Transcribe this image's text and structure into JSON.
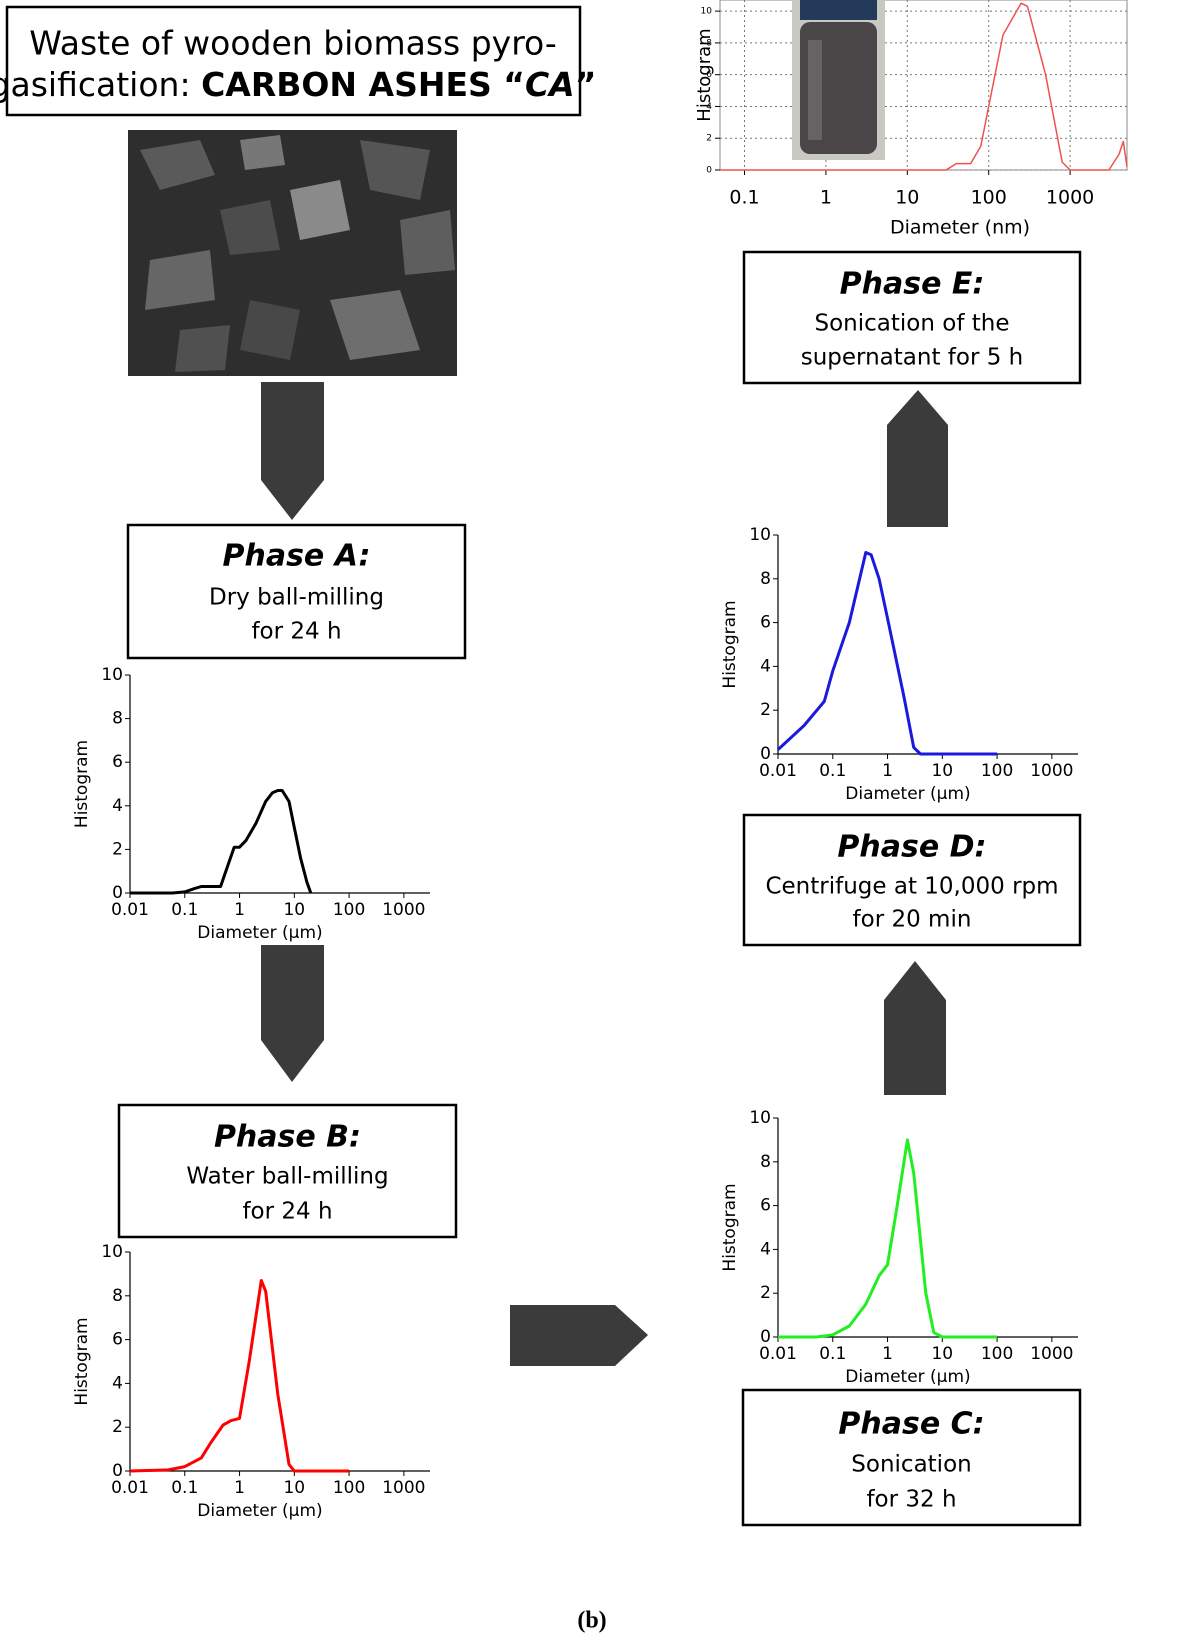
{
  "title_box": {
    "line1": "Waste of wooden biomass pyro-",
    "line2": [
      "gasification: ",
      "CARBON ASHES “",
      "CA",
      "”"
    ]
  },
  "phases": [
    {
      "title": "Phase A:",
      "lines": [
        "Dry ball-milling",
        "for 24 h"
      ]
    },
    {
      "title": "Phase B:",
      "lines": [
        "Water ball-milling",
        "for 24 h"
      ]
    },
    {
      "title": "Phase C:",
      "lines": [
        "Sonication",
        "for 32 h"
      ]
    },
    {
      "title": "Phase D:",
      "lines": [
        "Centrifuge at 10,000 rpm",
        "for 20 min"
      ]
    },
    {
      "title": "Phase E:",
      "lines": [
        "Sonication of the",
        "supernatant for 5 h"
      ]
    }
  ],
  "chart_data": [
    {
      "type": "line",
      "xlabel": "Diameter (μm)",
      "ylabel": "Histogram",
      "color": "#000000",
      "log_x": true,
      "grid": false,
      "x": [
        0.01,
        0.03,
        0.06,
        0.1,
        0.15,
        0.2,
        0.3,
        0.45,
        0.6,
        0.8,
        1,
        1.3,
        2,
        3,
        4,
        5,
        6,
        8,
        10,
        13,
        17,
        20
      ],
      "values": [
        0,
        0,
        0,
        0.05,
        0.2,
        0.3,
        0.3,
        0.3,
        1.2,
        2.1,
        2.1,
        2.4,
        3.2,
        4.2,
        4.6,
        4.7,
        4.7,
        4.2,
        3,
        1.6,
        0.5,
        0
      ],
      "xlim": [
        0.01,
        3000
      ],
      "ylim": [
        0,
        10
      ],
      "xticks": [
        0.01,
        0.1,
        1,
        10,
        100,
        1000
      ],
      "yticks": [
        0,
        2,
        4,
        6,
        8,
        10
      ]
    },
    {
      "type": "line",
      "xlabel": "Diameter (μm)",
      "ylabel": "Histogram",
      "color": "#ff0000",
      "log_x": true,
      "grid": false,
      "x": [
        0.01,
        0.05,
        0.1,
        0.2,
        0.3,
        0.5,
        0.7,
        1,
        1.5,
        2.5,
        3,
        5,
        8,
        10,
        100
      ],
      "values": [
        0,
        0.05,
        0.2,
        0.6,
        1.3,
        2.1,
        2.3,
        2.4,
        5,
        8.7,
        8.2,
        3.5,
        0.3,
        0,
        0
      ],
      "xlim": [
        0.01,
        3000
      ],
      "ylim": [
        0,
        10
      ],
      "xticks": [
        0.01,
        0.1,
        1,
        10,
        100,
        1000
      ],
      "yticks": [
        0,
        2,
        4,
        6,
        8,
        10
      ]
    },
    {
      "type": "line",
      "xlabel": "Diameter (μm)",
      "ylabel": "Histogram",
      "color": "#22ee22",
      "log_x": true,
      "grid": false,
      "x": [
        0.01,
        0.05,
        0.1,
        0.2,
        0.4,
        0.7,
        1,
        1.5,
        2.3,
        3,
        5,
        7,
        10,
        100
      ],
      "values": [
        0,
        0,
        0.1,
        0.5,
        1.5,
        2.8,
        3.3,
        6,
        9,
        7.5,
        2,
        0.2,
        0,
        0
      ],
      "xlim": [
        0.01,
        3000
      ],
      "ylim": [
        0,
        10
      ],
      "xticks": [
        0.01,
        0.1,
        1,
        10,
        100,
        1000
      ],
      "yticks": [
        0,
        2,
        4,
        6,
        8,
        10
      ]
    },
    {
      "type": "line",
      "xlabel": "Diameter (μm)",
      "ylabel": "Histogram",
      "color": "#1a1adf",
      "log_x": true,
      "grid": false,
      "x": [
        0.01,
        0.03,
        0.07,
        0.1,
        0.2,
        0.4,
        0.5,
        0.7,
        1,
        2,
        3,
        4,
        100
      ],
      "values": [
        0.2,
        1.3,
        2.4,
        3.8,
        6,
        9.2,
        9.1,
        8,
        6.2,
        2.6,
        0.3,
        0,
        0
      ],
      "xlim": [
        0.01,
        3000
      ],
      "ylim": [
        0,
        10
      ],
      "xticks": [
        0.01,
        0.1,
        1,
        10,
        100,
        1000
      ],
      "yticks": [
        0,
        2,
        4,
        6,
        8,
        10
      ]
    },
    {
      "type": "line",
      "xlabel": "Diameter (nm)",
      "ylabel": "Histogram",
      "color": "#f05050",
      "log_x": true,
      "grid": true,
      "x": [
        0.05,
        30,
        40,
        60,
        80,
        100,
        150,
        250,
        300,
        500,
        800,
        1000,
        3000,
        4000,
        4500,
        5000
      ],
      "values": [
        0,
        0,
        0.4,
        0.4,
        1.5,
        4,
        8.5,
        10.5,
        10.3,
        6,
        0.5,
        0,
        0,
        1,
        1.8,
        0.2
      ],
      "xlim": [
        0.05,
        5000
      ],
      "ylim": [
        0,
        10.7
      ],
      "xticks": [
        0.1,
        1,
        10,
        100,
        1000
      ],
      "yticks": [
        0,
        2,
        4,
        6,
        8,
        10
      ]
    }
  ],
  "caption": "(b)"
}
